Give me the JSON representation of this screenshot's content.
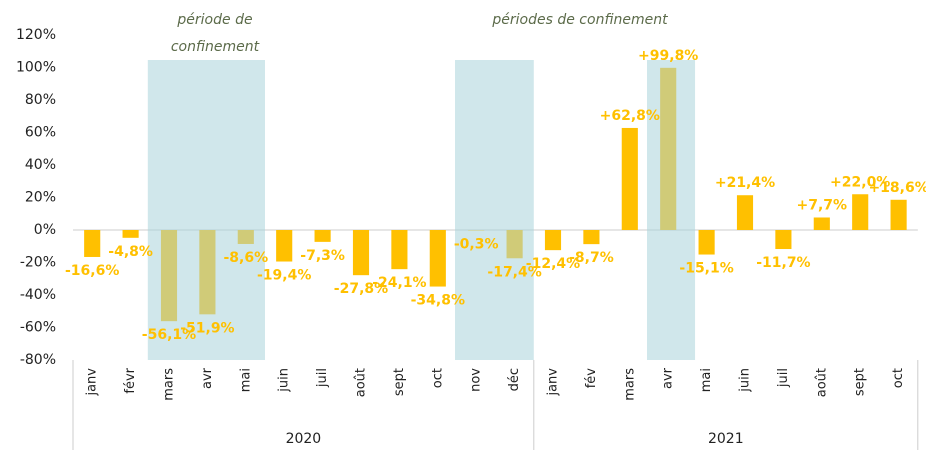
{
  "chart_data": {
    "type": "bar",
    "annotations": [
      "période de",
      "confinement",
      "périodes de confinement"
    ],
    "years": [
      "2020",
      "2021"
    ],
    "categories": [
      "janv",
      "févr",
      "mars",
      "avr",
      "mai",
      "juin",
      "juil",
      "août",
      "sept",
      "oct",
      "nov",
      "déc",
      "janv",
      "fév",
      "mars",
      "avr",
      "mai",
      "juin",
      "juil",
      "août",
      "sept",
      "oct"
    ],
    "values": [
      -16.6,
      -4.8,
      -56.1,
      -51.9,
      -8.6,
      -19.4,
      -7.3,
      -27.8,
      -24.1,
      -34.8,
      -0.3,
      -17.4,
      -12.4,
      -8.7,
      62.8,
      99.8,
      -15.1,
      21.4,
      -11.7,
      7.7,
      22.0,
      18.6
    ],
    "value_labels": [
      "-16,6%",
      "-4,8%",
      "-56,1%",
      "-51,9%",
      "-8,6%",
      "-19,4%",
      "-7,3%",
      "-27,8%",
      "-24,1%",
      "-34,8%",
      "-0,3%",
      "-17,4%",
      "-12,4%",
      "-8,7%",
      "+62,8%",
      "+99,8%",
      "-15,1%",
      "+21,4%",
      "-11,7%",
      "+7,7%",
      "+22,0%",
      "+18,6%"
    ],
    "color": "#ffc000",
    "ylim": [
      -80,
      120
    ],
    "yticks": [
      {
        "value": -80,
        "label": "-80%"
      },
      {
        "value": -60,
        "label": "-60%"
      },
      {
        "value": -40,
        "label": "-40%"
      },
      {
        "value": -20,
        "label": "-20%"
      },
      {
        "value": 0,
        "label": "0%"
      },
      {
        "value": 20,
        "label": "20%"
      },
      {
        "value": 40,
        "label": "40%"
      },
      {
        "value": 60,
        "label": "60%"
      },
      {
        "value": 80,
        "label": "80%"
      },
      {
        "value": 100,
        "label": "100%"
      },
      {
        "value": 120,
        "label": "120%"
      }
    ],
    "grid": false
  }
}
